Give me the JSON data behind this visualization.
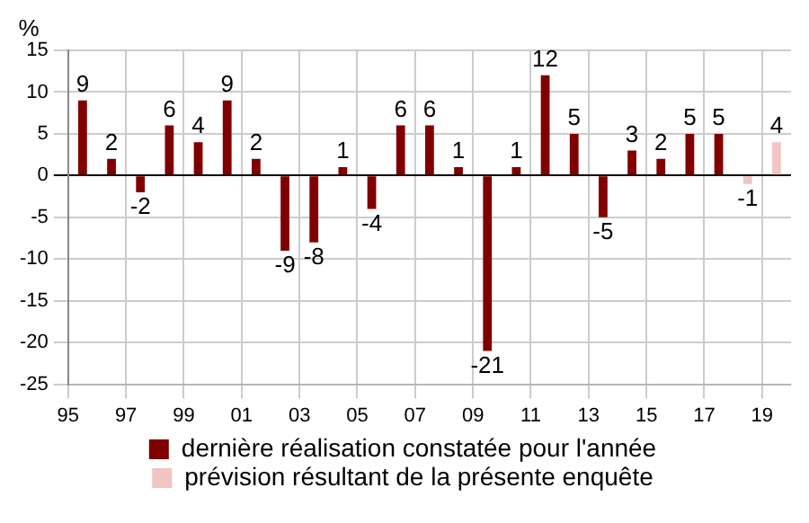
{
  "chart_data": {
    "type": "bar",
    "ylabel": "%",
    "categories": [
      "95",
      null,
      "97",
      null,
      "99",
      null,
      "01",
      null,
      "03",
      null,
      "05",
      null,
      "07",
      null,
      "09",
      null,
      "11",
      null,
      "13",
      null,
      "15",
      null,
      "17",
      null,
      "19"
    ],
    "series": [
      {
        "name": "dernière réalisation constatée pour l'année",
        "color": "#800000",
        "values": [
          9,
          2,
          -2,
          6,
          4,
          9,
          2,
          -9,
          -8,
          1,
          -4,
          6,
          6,
          1,
          -21,
          1,
          12,
          5,
          -5,
          3,
          2,
          5,
          5,
          null,
          null
        ]
      },
      {
        "name": "prévision résultant de la présente enquête",
        "color": "#f2c4c4",
        "values": [
          null,
          null,
          null,
          null,
          null,
          null,
          null,
          null,
          null,
          null,
          null,
          null,
          null,
          null,
          null,
          null,
          null,
          null,
          null,
          null,
          null,
          null,
          null,
          -1,
          4
        ]
      }
    ],
    "ylim": [
      -25,
      15
    ],
    "yticks": [
      -25,
      -20,
      -15,
      -10,
      -5,
      0,
      5,
      10,
      15
    ],
    "grid": true,
    "legend": "bottom",
    "data_labels": true
  }
}
